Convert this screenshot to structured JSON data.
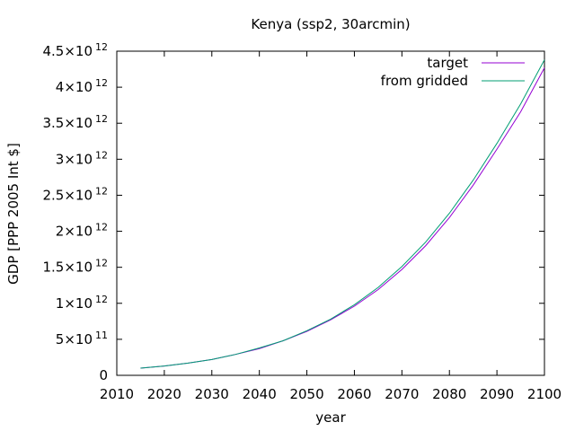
{
  "chart_data": {
    "type": "line",
    "title": "Kenya (ssp2, 30arcmin)",
    "xlabel": "year",
    "ylabel": "GDP [PPP 2005 Int $]",
    "xlim": [
      2010,
      2100
    ],
    "ylim": [
      0,
      4500000000000.0
    ],
    "x_ticks": [
      2010,
      2020,
      2030,
      2040,
      2050,
      2060,
      2070,
      2080,
      2090,
      2100
    ],
    "y_ticks": [
      {
        "value": 0,
        "label": "0",
        "exp": ""
      },
      {
        "value": 500000000000.0,
        "label": "5×10",
        "exp": "11"
      },
      {
        "value": 1000000000000.0,
        "label": "1×10",
        "exp": "12"
      },
      {
        "value": 1500000000000.0,
        "label": "1.5×10",
        "exp": "12"
      },
      {
        "value": 2000000000000.0,
        "label": "2×10",
        "exp": "12"
      },
      {
        "value": 2500000000000.0,
        "label": "2.5×10",
        "exp": "12"
      },
      {
        "value": 3000000000000.0,
        "label": "3×10",
        "exp": "12"
      },
      {
        "value": 3500000000000.0,
        "label": "3.5×10",
        "exp": "12"
      },
      {
        "value": 4000000000000.0,
        "label": "4×10",
        "exp": "12"
      },
      {
        "value": 4500000000000.0,
        "label": "4.5×10",
        "exp": "12"
      }
    ],
    "legend_position": "top-right",
    "grid": false,
    "x": [
      2015,
      2020,
      2025,
      2030,
      2035,
      2040,
      2045,
      2050,
      2055,
      2060,
      2065,
      2070,
      2075,
      2080,
      2085,
      2090,
      2095,
      2100
    ],
    "series": [
      {
        "name": "target",
        "color": "#9400d3",
        "values": [
          100000000000.0,
          130000000000.0,
          170000000000.0,
          220000000000.0,
          290000000000.0,
          370000000000.0,
          480000000000.0,
          610000000000.0,
          770000000000.0,
          960000000000.0,
          1190000000000.0,
          1470000000000.0,
          1800000000000.0,
          2190000000000.0,
          2640000000000.0,
          3140000000000.0,
          3660000000000.0,
          4270000000000.0
        ]
      },
      {
        "name": "from gridded",
        "color": "#009e73",
        "values": [
          100000000000.0,
          130000000000.0,
          170000000000.0,
          220000000000.0,
          290000000000.0,
          380000000000.0,
          480000000000.0,
          620000000000.0,
          780000000000.0,
          980000000000.0,
          1220000000000.0,
          1510000000000.0,
          1850000000000.0,
          2250000000000.0,
          2710000000000.0,
          3220000000000.0,
          3770000000000.0,
          4380000000000.0
        ]
      }
    ]
  }
}
